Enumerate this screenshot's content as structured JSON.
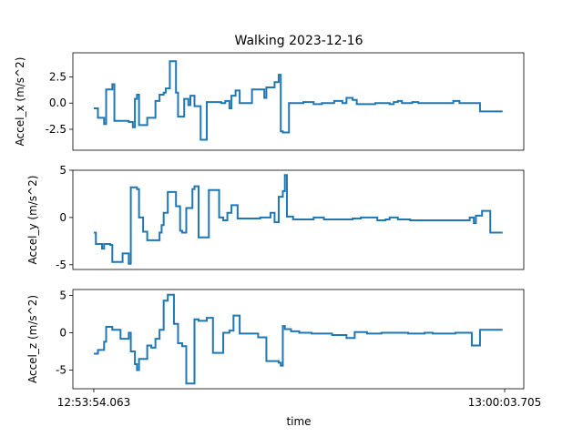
{
  "chart_data": {
    "type": "line",
    "title": "Walking  2023-12-16",
    "xlabel": "time",
    "x_tick_labels": [
      "12:53:54.063",
      "13:00:03.705"
    ],
    "color": "#1f77b4",
    "grid": false,
    "legend": "none",
    "x": [
      0.0,
      0.5,
      1.0,
      1.5,
      2.0,
      2.5,
      3.0,
      3.5,
      4.0,
      4.5,
      5.0,
      5.5,
      6.0,
      6.5,
      7.0,
      7.5,
      8.0,
      8.5,
      9.0,
      9.5,
      10.0,
      10.5,
      11.0,
      11.5,
      12.0,
      12.5,
      13.0,
      13.5,
      14.0,
      14.5,
      15.0,
      15.5,
      16.0,
      16.5,
      17.0,
      17.5,
      18.0,
      18.5,
      19.0,
      19.5,
      20.0,
      20.5,
      21.0,
      21.5,
      22.0,
      22.5,
      23.0,
      23.5,
      24.0,
      24.5,
      25.0,
      25.5,
      26.0,
      26.5,
      27.0,
      27.5,
      28.0,
      28.5,
      29.0,
      29.5,
      30.0,
      30.5,
      31.0,
      31.5,
      32.0,
      32.5,
      33.0,
      33.5,
      34.0,
      34.5,
      35.0,
      35.5,
      36.0,
      36.5,
      37.0,
      37.5,
      38.0,
      38.5,
      39.0,
      39.5,
      40.0,
      40.5,
      41.0,
      41.5,
      42.0,
      42.5,
      43.0,
      43.5,
      44.0,
      44.5,
      45.0,
      45.5,
      46.0,
      46.5,
      47.0,
      47.5,
      48.0,
      48.5,
      49.0,
      49.5,
      50.0,
      50.5,
      51.0,
      51.5,
      52.0,
      52.5,
      53.0,
      53.5,
      54.0,
      54.5,
      55.0,
      55.5,
      56.0,
      56.5,
      57.0,
      57.5,
      58.0,
      58.5,
      59.0,
      59.5,
      60.0,
      60.5,
      61.0,
      61.5,
      62.0,
      62.5,
      63.0,
      63.5,
      64.0,
      64.5,
      65.0,
      65.5,
      66.0,
      66.5,
      67.0,
      67.5,
      68.0,
      68.5,
      69.0,
      69.5,
      70.0,
      70.5,
      71.0,
      71.5,
      72.0,
      72.5,
      73.0,
      73.5,
      74.0,
      74.5,
      75.0,
      75.5,
      76.0,
      76.5,
      77.0,
      77.5,
      78.0,
      78.5,
      79.0,
      79.5,
      80.0,
      80.5,
      81.0,
      81.5,
      82.0,
      82.5,
      83.0,
      83.5,
      84.0,
      84.5,
      85.0,
      85.5,
      86.0,
      86.5,
      87.0,
      87.5,
      88.0,
      88.5,
      89.0,
      89.5,
      90.0,
      90.5,
      91.0,
      91.5,
      92.0,
      92.5,
      93.0,
      93.5,
      94.0,
      94.5,
      95.0,
      95.5,
      96.0,
      96.5,
      97.0,
      97.5,
      98.0,
      98.5,
      99.0,
      99.5,
      100.0
    ],
    "panels": [
      {
        "name": "Accel_x",
        "ylabel": "Accel_x  (m/s^2)",
        "ylim": [
          -4.5,
          4.8
        ],
        "yticks": [
          -2.5,
          0.0,
          2.5
        ],
        "ytick_labels": [
          "-2.5",
          "0.0",
          "2.5"
        ],
        "values": [
          -0.5,
          -0.5,
          -1.4,
          -1.4,
          -1.4,
          -2.0,
          1.3,
          1.3,
          1.3,
          1.8,
          -1.7,
          -1.7,
          -1.7,
          -1.7,
          -1.7,
          -1.7,
          -1.7,
          -1.8,
          -1.8,
          -2.3,
          0.4,
          0.8,
          -2.1,
          -2.1,
          -2.1,
          -2.1,
          -1.4,
          -1.4,
          -1.4,
          -1.4,
          0.2,
          0.2,
          0.8,
          0.8,
          1.0,
          1.4,
          1.4,
          4.0,
          4.0,
          4.0,
          1.0,
          -1.3,
          -1.3,
          -1.3,
          0.4,
          0.4,
          -0.2,
          0.7,
          0.7,
          -0.3,
          -0.3,
          -0.3,
          -3.5,
          -3.5,
          -3.5,
          0.1,
          0.1,
          0.1,
          0.1,
          0.1,
          0.1,
          0.1,
          0.0,
          0.0,
          0.2,
          0.2,
          -0.5,
          0.7,
          0.7,
          1.2,
          1.2,
          0.0,
          0.0,
          0.0,
          0.0,
          0.0,
          0.0,
          1.3,
          1.3,
          1.3,
          1.3,
          1.3,
          1.3,
          0.5,
          1.5,
          1.5,
          1.5,
          1.5,
          2.0,
          2.0,
          2.7,
          -2.7,
          -2.8,
          -2.8,
          -2.8,
          0.0,
          0.0,
          0.0,
          0.0,
          0.0,
          0.0,
          0.0,
          0.1,
          0.1,
          0.1,
          0.1,
          0.1,
          -0.1,
          -0.1,
          -0.1,
          -0.1,
          0.0,
          0.0,
          0.0,
          0.0,
          0.0,
          0.0,
          0.2,
          0.2,
          0.2,
          0.2,
          0.0,
          0.0,
          0.5,
          0.5,
          0.5,
          0.3,
          0.3,
          -0.1,
          -0.1,
          -0.1,
          -0.1,
          -0.1,
          -0.1,
          -0.1,
          -0.1,
          -0.1,
          0.0,
          0.0,
          0.0,
          0.0,
          0.0,
          0.0,
          0.0,
          -0.1,
          -0.1,
          0.1,
          0.1,
          0.2,
          0.2,
          0.0,
          0.0,
          0.0,
          0.0,
          0.0,
          0.1,
          0.1,
          0.1,
          0.0,
          0.0,
          0.0,
          0.0,
          0.0,
          0.0,
          0.0,
          0.0,
          0.0,
          0.0,
          0.0,
          0.0,
          0.0,
          0.0,
          0.0,
          0.0,
          0.0,
          0.2,
          0.2,
          0.2,
          0.0,
          0.0,
          0.0,
          0.0,
          0.0,
          0.0,
          0.0,
          0.0,
          0.0,
          0.0,
          -0.8,
          -0.8,
          -0.8,
          -0.8,
          -0.8,
          -0.8,
          -0.8,
          -0.8,
          -0.8,
          -0.8,
          -0.8
        ]
      },
      {
        "name": "Accel_y",
        "ylabel": "Accel_y  (m/s^2)",
        "ylim": [
          -5.5,
          5.0
        ],
        "yticks": [
          -5,
          0,
          5
        ],
        "ytick_labels": [
          "-5",
          "0",
          "5"
        ],
        "values": [
          -1.6,
          -2.8,
          -2.8,
          -2.8,
          -3.3,
          -2.8,
          -2.8,
          -2.8,
          -2.9,
          -4.7,
          -4.7,
          -4.7,
          -4.7,
          -4.7,
          -3.8,
          -3.8,
          -3.8,
          -4.9,
          3.2,
          3.2,
          3.2,
          3.0,
          0.0,
          0.0,
          -1.5,
          -1.5,
          -2.4,
          -2.4,
          -2.4,
          -2.4,
          -2.4,
          -2.4,
          -1.6,
          -0.8,
          0.5,
          0.5,
          2.7,
          2.7,
          2.7,
          2.7,
          1.2,
          1.2,
          -1.4,
          -1.6,
          -1.6,
          1.0,
          1.0,
          1.0,
          3.0,
          3.3,
          3.3,
          -2.1,
          -2.1,
          -2.1,
          -2.1,
          -2.1,
          2.9,
          2.9,
          2.9,
          2.9,
          2.9,
          0.0,
          0.0,
          -0.3,
          -0.3,
          0.5,
          0.5,
          1.3,
          1.3,
          1.3,
          -0.1,
          -0.1,
          -0.1,
          -0.1,
          -0.1,
          -0.1,
          -0.1,
          -0.1,
          -0.1,
          -0.1,
          -0.1,
          0.0,
          0.0,
          0.0,
          0.0,
          0.0,
          0.5,
          0.5,
          -0.5,
          -0.5,
          2.2,
          2.2,
          2.8,
          4.5,
          0.1,
          0.1,
          0.1,
          -0.2,
          -0.2,
          -0.2,
          -0.2,
          -0.2,
          -0.2,
          -0.2,
          -0.2,
          -0.2,
          -0.2,
          0.0,
          0.0,
          0.0,
          0.0,
          0.0,
          -0.2,
          -0.2,
          -0.2,
          -0.2,
          -0.2,
          -0.2,
          -0.2,
          -0.2,
          -0.2,
          -0.2,
          -0.2,
          -0.2,
          -0.2,
          -0.2,
          -0.1,
          -0.1,
          -0.1,
          -0.1,
          0.0,
          0.0,
          0.0,
          0.0,
          0.0,
          0.0,
          0.0,
          0.0,
          -0.3,
          -0.3,
          -0.3,
          -0.3,
          -0.2,
          -0.2,
          0.0,
          0.0,
          0.0,
          0.0,
          -0.2,
          -0.2,
          -0.2,
          -0.2,
          -0.2,
          -0.2,
          -0.3,
          -0.3,
          -0.3,
          -0.3,
          -0.3,
          -0.3,
          -0.3,
          -0.3,
          -0.3,
          -0.3,
          -0.3,
          -0.3,
          -0.3,
          -0.3,
          -0.3,
          -0.3,
          -0.3,
          -0.3,
          -0.3,
          -0.3,
          -0.3,
          -0.3,
          -0.3,
          -0.3,
          -0.3,
          -0.3,
          -0.3,
          -0.3,
          -0.3,
          0.0,
          0.0,
          -0.6,
          0.2,
          0.2,
          0.2,
          0.7,
          0.7,
          0.7,
          0.7,
          -1.6,
          -1.6,
          -1.6,
          -1.6,
          -1.6,
          -1.6
        ]
      },
      {
        "name": "Accel_z",
        "ylabel": "Accel_z  (m/s^2)",
        "ylim": [
          -7.5,
          5.8
        ],
        "yticks": [
          -5,
          0,
          5
        ],
        "ytick_labels": [
          "-5",
          "0",
          "5"
        ],
        "values": [
          -2.8,
          -2.8,
          -2.3,
          -2.3,
          -2.3,
          -1.2,
          0.8,
          0.8,
          0.8,
          0.4,
          0.4,
          0.4,
          0.4,
          -0.8,
          -0.8,
          -0.8,
          -0.8,
          0.0,
          -2.5,
          -2.5,
          -4.2,
          -5.0,
          -3.5,
          -3.5,
          -3.5,
          -3.5,
          -1.7,
          -1.7,
          -2.0,
          -2.0,
          -0.8,
          -0.8,
          0.4,
          0.4,
          4.3,
          4.3,
          5.1,
          5.1,
          5.1,
          1.2,
          1.2,
          -1.4,
          -1.4,
          -1.8,
          -1.8,
          -6.8,
          -6.8,
          -6.8,
          -6.8,
          1.8,
          1.8,
          1.6,
          1.6,
          1.6,
          1.6,
          2.0,
          2.0,
          2.0,
          -2.7,
          -2.7,
          -2.7,
          -2.7,
          -2.7,
          0.0,
          0.0,
          0.0,
          0.3,
          0.3,
          2.3,
          2.3,
          2.3,
          -0.1,
          -0.1,
          -0.1,
          -0.1,
          -0.1,
          -0.1,
          -0.1,
          -0.1,
          -0.1,
          -0.6,
          -0.6,
          -0.6,
          -0.6,
          -3.8,
          -3.8,
          -3.8,
          -3.8,
          -3.8,
          -3.8,
          -4.0,
          -4.4,
          0.9,
          0.5,
          0.5,
          0.5,
          0.2,
          0.2,
          0.2,
          0.2,
          0.0,
          0.0,
          0.0,
          0.0,
          0.0,
          0.0,
          -0.1,
          -0.1,
          -0.1,
          -0.1,
          -0.1,
          -0.1,
          -0.1,
          -0.1,
          -0.1,
          -0.1,
          -0.3,
          -0.3,
          -0.3,
          -0.3,
          -0.3,
          -0.3,
          -0.3,
          -0.7,
          -0.7,
          -0.7,
          -0.7,
          0.1,
          0.1,
          0.1,
          0.1,
          0.1,
          0.1,
          -0.1,
          -0.1,
          -0.1,
          -0.1,
          -0.1,
          -0.1,
          -0.1,
          0.0,
          0.0,
          0.0,
          0.0,
          0.0,
          0.0,
          0.0,
          0.0,
          0.0,
          0.0,
          0.0,
          0.0,
          0.0,
          -0.1,
          -0.1,
          -0.1,
          -0.1,
          -0.1,
          -0.1,
          -0.1,
          -0.1,
          0.0,
          0.0,
          0.0,
          0.0,
          -0.1,
          -0.1,
          -0.1,
          -0.1,
          -0.1,
          -0.1,
          -0.1,
          -0.1,
          -0.1,
          -0.1,
          -0.1,
          0.0,
          0.0,
          0.0,
          0.0,
          0.0,
          0.0,
          0.0,
          0.0,
          -1.7,
          -1.7,
          -1.7,
          -1.7,
          0.4,
          0.4,
          0.4,
          0.4,
          0.4,
          0.4,
          0.4,
          0.4,
          0.4,
          0.4,
          0.4
        ]
      }
    ]
  }
}
